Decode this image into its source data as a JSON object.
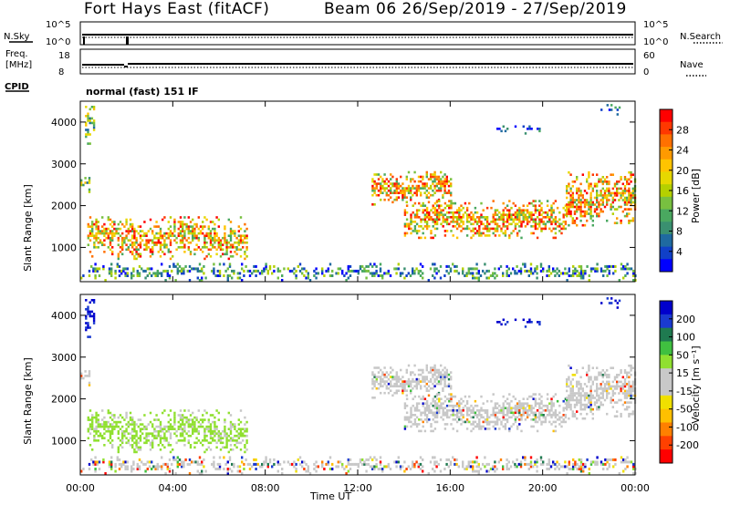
{
  "header": {
    "station": "Fort Hays East (fitACF)",
    "beam_range": "Beam 06  26/Sep/2019 - 27/Sep/2019"
  },
  "status_panels": {
    "nsky_label": "N.Sky",
    "nsearch_label": "N.Search",
    "count_ticks": [
      "10^5",
      "10^0"
    ],
    "freq_label": "Freq.",
    "freq_unit": "[MHz]",
    "freq_ticks": [
      "18",
      "8"
    ],
    "nave_label": "Nave",
    "nave_ticks": [
      "60",
      "0"
    ],
    "cpid_label": "CPID",
    "cpid_text": "normal (fast) 151 IF"
  },
  "chart_data": [
    {
      "type": "heatmap",
      "name": "power",
      "ylabel": "Slant Range [km]",
      "y_ticks": [
        "4000",
        "3000",
        "2000",
        "1000"
      ],
      "y_tick_values": [
        4000,
        3000,
        2000,
        1000
      ],
      "ylim": [
        180,
        4500
      ],
      "x_ticks": [
        "00:00",
        "04:00",
        "08:00",
        "12:00",
        "16:00",
        "20:00",
        "00:00"
      ],
      "x_tick_values": [
        0,
        4,
        8,
        12,
        16,
        20,
        24
      ],
      "xlim": [
        0,
        24
      ],
      "colorbar": {
        "label": "Power [dB]",
        "ticks": [
          "28",
          "24",
          "20",
          "16",
          "12",
          "8",
          "4"
        ],
        "colors": [
          "#ff0000",
          "#ff3800",
          "#ff7000",
          "#ff9a00",
          "#ffc400",
          "#e6d800",
          "#b4d000",
          "#78c040",
          "#4aa860",
          "#3a9070",
          "#1f6aa0",
          "#1040c8",
          "#0000ff"
        ]
      },
      "regions": [
        {
          "t0": 0.3,
          "t1": 7.2,
          "r0": 700,
          "r1": 1700,
          "level": "strong"
        },
        {
          "t0": 0.0,
          "t1": 0.4,
          "r0": 2300,
          "r1": 2700,
          "level": "medium"
        },
        {
          "t0": 0.2,
          "t1": 0.6,
          "r0": 3400,
          "r1": 4400,
          "level": "medium"
        },
        {
          "t0": 12.6,
          "t1": 16.0,
          "r0": 2000,
          "r1": 2800,
          "level": "strong"
        },
        {
          "t0": 14.0,
          "t1": 21.0,
          "r0": 1200,
          "r1": 2100,
          "level": "strong"
        },
        {
          "t0": 21.0,
          "t1": 24.0,
          "r0": 1500,
          "r1": 2800,
          "level": "strong"
        },
        {
          "t0": 18.0,
          "t1": 20.0,
          "r0": 3700,
          "r1": 3900,
          "level": "weak"
        },
        {
          "t0": 22.5,
          "t1": 23.3,
          "r0": 4100,
          "r1": 4400,
          "level": "weak"
        },
        {
          "t0": 0.0,
          "t1": 24.0,
          "r0": 180,
          "r1": 600,
          "level": "ground"
        }
      ]
    },
    {
      "type": "heatmap",
      "name": "velocity",
      "ylabel": "Slant Range [km]",
      "y_ticks": [
        "4000",
        "3000",
        "2000",
        "1000"
      ],
      "y_tick_values": [
        4000,
        3000,
        2000,
        1000
      ],
      "ylim": [
        180,
        4500
      ],
      "x_ticks": [
        "00:00",
        "04:00",
        "08:00",
        "12:00",
        "16:00",
        "20:00",
        "00:00"
      ],
      "x_tick_values": [
        0,
        4,
        8,
        12,
        16,
        20,
        24
      ],
      "xlim": [
        0,
        24
      ],
      "xlabel": "Time UT",
      "colorbar": {
        "label": "Velocity [m s⁻¹]",
        "ticks": [
          "200",
          "100",
          "50",
          "15",
          "-15",
          "-50",
          "-100",
          "-200"
        ],
        "colors": [
          "#0000cc",
          "#1a3ad0",
          "#1f7a50",
          "#40c040",
          "#90e030",
          "#c8c8c8",
          "#c8c8c8",
          "#f0e000",
          "#ffc000",
          "#ff8000",
          "#ff4000",
          "#ff0000"
        ]
      }
    }
  ]
}
